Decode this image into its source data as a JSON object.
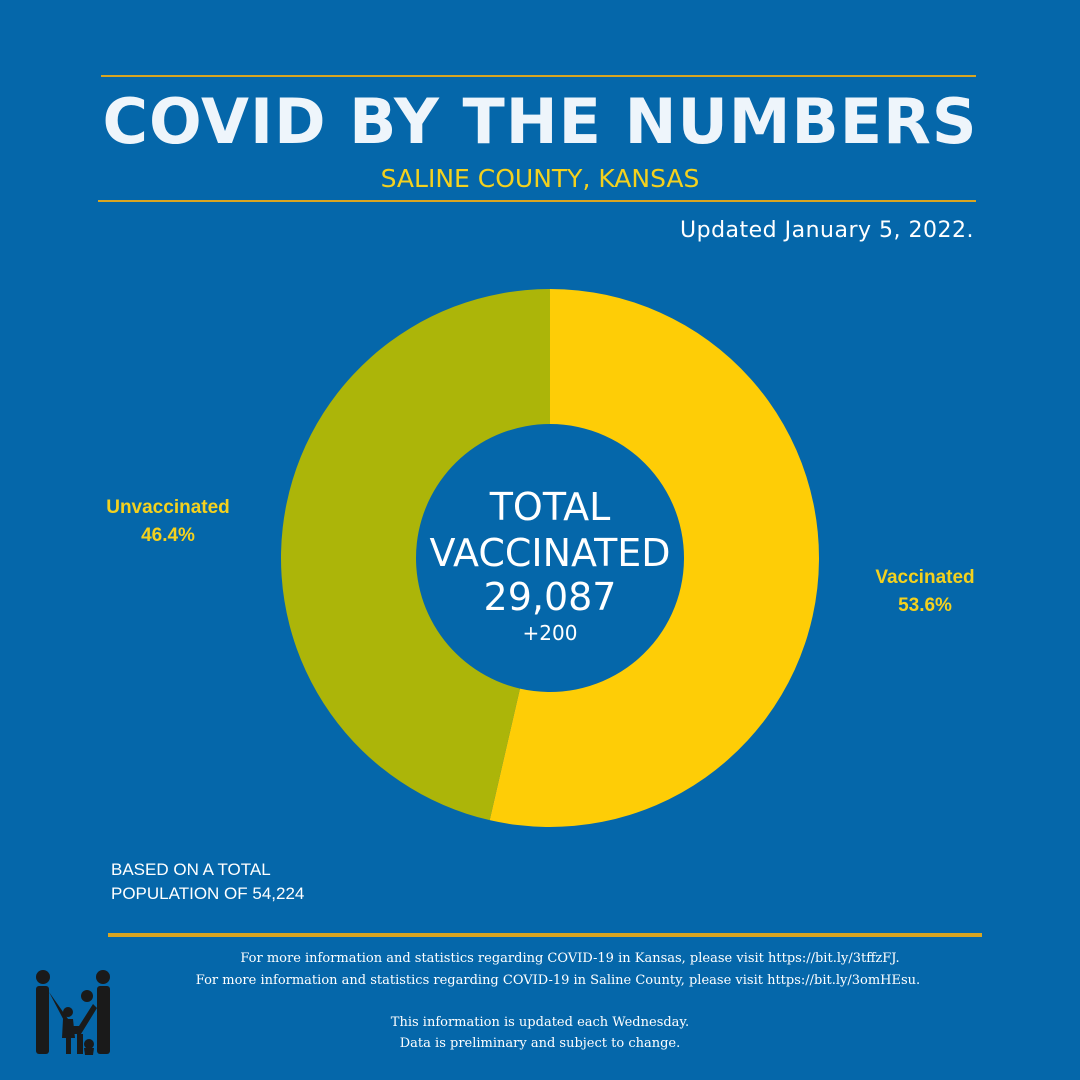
{
  "header": {
    "title": "COVID BY THE NUMBERS",
    "subtitle": "SALINE COUNTY, KANSAS",
    "updated": "Updated January 5, 2022."
  },
  "center": {
    "line1": "TOTAL",
    "line2": "VACCINATED",
    "count": "29,087",
    "delta": "+200"
  },
  "labels": {
    "unvaccinated_name": "Unvaccinated",
    "unvaccinated_pct": "46.4%",
    "vaccinated_name": "Vaccinated",
    "vaccinated_pct": "53.6%"
  },
  "basis": {
    "line1": "BASED ON A TOTAL",
    "line2": "POPULATION OF 54,224"
  },
  "footer": {
    "kansas_info": "For more information and statistics regarding COVID-19 in Kansas, please visit https://bit.ly/3tffzFJ.",
    "saline_info": "For more information and statistics regarding COVID-19 in Saline County, please visit  https://bit.ly/3omHEsu.",
    "update_note": "This information is updated each Wednesday.",
    "disclaimer": "Data is preliminary and subject to change."
  },
  "colors": {
    "background": "#0567aa",
    "vaccinated": "#fecd06",
    "unvaccinated": "#acb509",
    "accent_rule": "#d9a521",
    "label_text": "#f4d11e"
  },
  "chart_data": {
    "type": "pie",
    "title": "",
    "slices": [
      {
        "name": "Vaccinated",
        "value": 53.6
      },
      {
        "name": "Unvaccinated",
        "value": 46.4
      }
    ],
    "total_vaccinated": 29087,
    "total_population": 54224,
    "change": 200
  }
}
